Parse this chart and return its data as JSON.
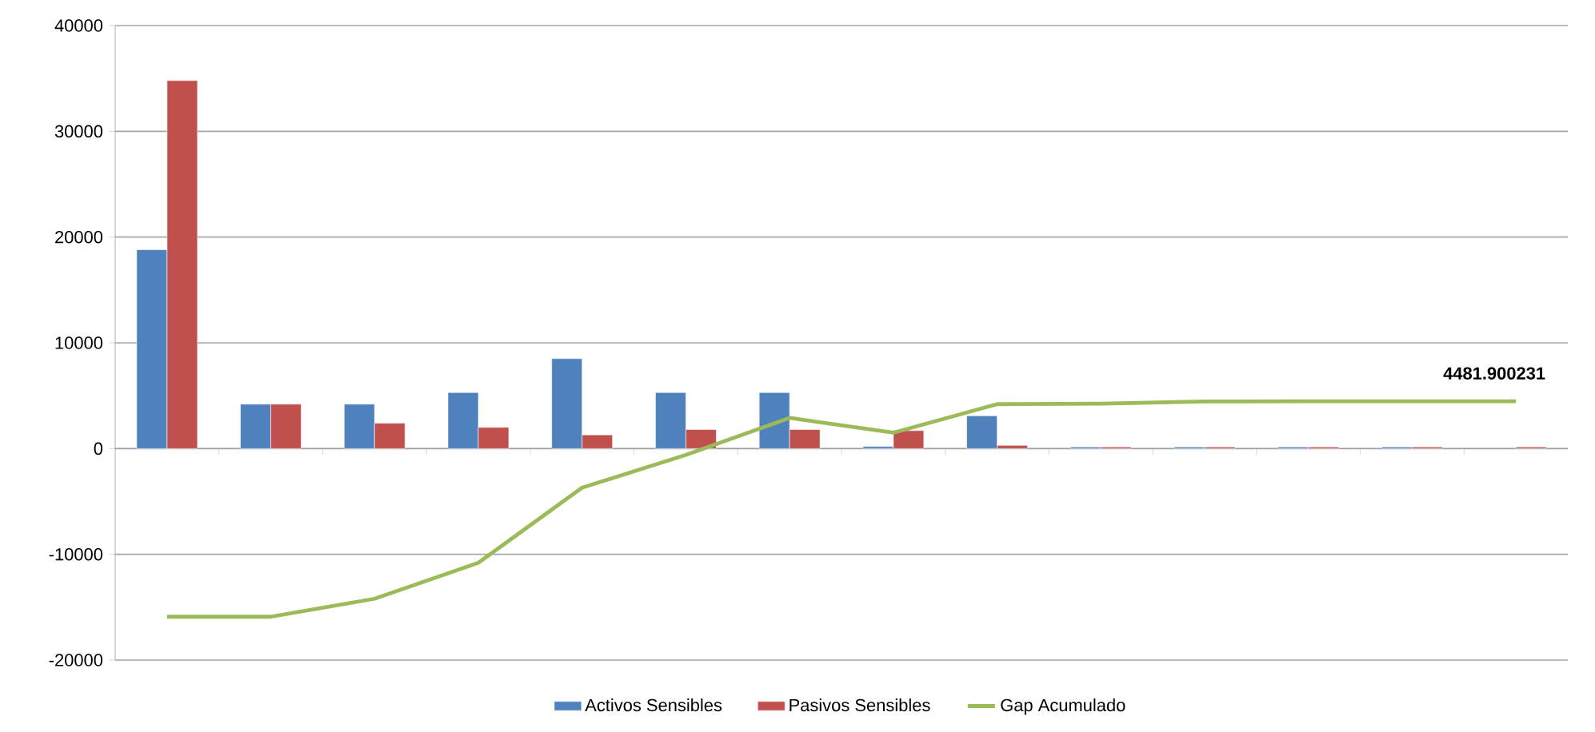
{
  "chart_data": {
    "type": "bar",
    "categories": [
      null,
      null,
      null,
      null,
      null,
      null,
      null,
      null,
      null,
      null,
      null,
      null,
      null,
      null
    ],
    "series": [
      {
        "name": "Activos Sensibles",
        "color": "#4f81bd",
        "values": [
          18800,
          4200,
          4200,
          5300,
          8500,
          5300,
          5300,
          200,
          3100,
          150,
          150,
          150,
          150,
          null
        ]
      },
      {
        "name": "Pasivos Sensibles",
        "color": "#c0504d",
        "values": [
          34800,
          4200,
          2400,
          2000,
          1300,
          1800,
          1800,
          1700,
          300,
          150,
          150,
          150,
          150,
          150
        ]
      },
      {
        "name": "Gap Acumulado",
        "type": "line",
        "color": "#9bbb59",
        "values": [
          -15900,
          -15900,
          -14200,
          -10800,
          -3700,
          -600,
          2900,
          1500,
          4200,
          4250,
          4450,
          4480,
          4480,
          4481.900231
        ],
        "value_labels": [
          null,
          null,
          null,
          null,
          null,
          null,
          null,
          null,
          null,
          null,
          null,
          null,
          null,
          "4481.900231"
        ]
      }
    ],
    "ylim": [
      -20000,
      40000
    ],
    "yticks": [
      -20000,
      -10000,
      0,
      10000,
      20000,
      30000,
      40000
    ],
    "grid": "y",
    "legend": "bottom"
  }
}
